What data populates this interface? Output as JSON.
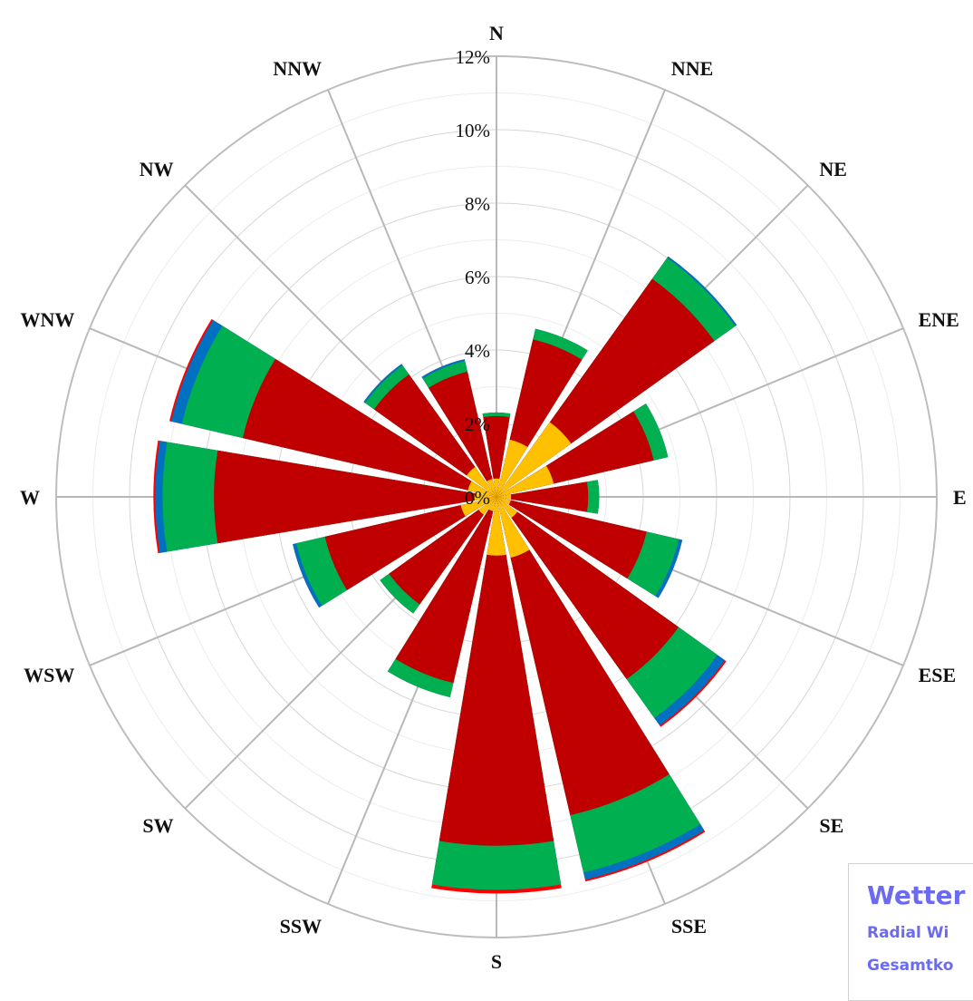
{
  "chart_data": {
    "type": "stacked-polar-bar",
    "title": "",
    "directions": [
      "N",
      "NNE",
      "NE",
      "ENE",
      "E",
      "ESE",
      "SE",
      "SSE",
      "S",
      "SSW",
      "SW",
      "WSW",
      "W",
      "WNW",
      "NW",
      "NNW"
    ],
    "radial_ticks": [
      "0%",
      "2%",
      "4%",
      "6%",
      "8%",
      "10%",
      "12%"
    ],
    "rmax": 12,
    "grid": true,
    "series": [
      {
        "color": "#FFC000",
        "values": [
          0.5,
          1.6,
          2.5,
          1.6,
          0.4,
          0.4,
          0.7,
          1.7,
          1.6,
          0.4,
          0.6,
          1.0,
          0.6,
          0.8,
          1.0,
          0.5
        ]
      },
      {
        "color": "#C00000",
        "values": [
          2.2,
          4.4,
          7.3,
          4.4,
          2.5,
          4.2,
          6.1,
          8.9,
          9.5,
          5.2,
          3.6,
          4.8,
          7.7,
          7.1,
          4.1,
          3.5
        ]
      },
      {
        "color": "#00B050",
        "values": [
          2.3,
          4.7,
          8.0,
          4.8,
          2.8,
          5.1,
          7.4,
          10.5,
          10.7,
          5.6,
          3.9,
          5.6,
          9.1,
          8.8,
          4.4,
          3.8
        ]
      },
      {
        "color": "#0070C0",
        "values": [
          2.3,
          4.7,
          8.05,
          4.8,
          2.8,
          5.2,
          7.65,
          10.7,
          10.7,
          5.6,
          3.9,
          5.7,
          9.3,
          9.1,
          4.45,
          3.85
        ]
      },
      {
        "color": "#FF0000",
        "values": [
          2.3,
          4.7,
          8.05,
          4.8,
          2.8,
          5.2,
          7.7,
          10.75,
          10.8,
          5.6,
          3.9,
          5.7,
          9.35,
          9.15,
          4.45,
          3.85
        ]
      }
    ]
  },
  "legend": {
    "title": "Wetter",
    "line1": "Radial Wi",
    "line2": "Gesamtko"
  }
}
